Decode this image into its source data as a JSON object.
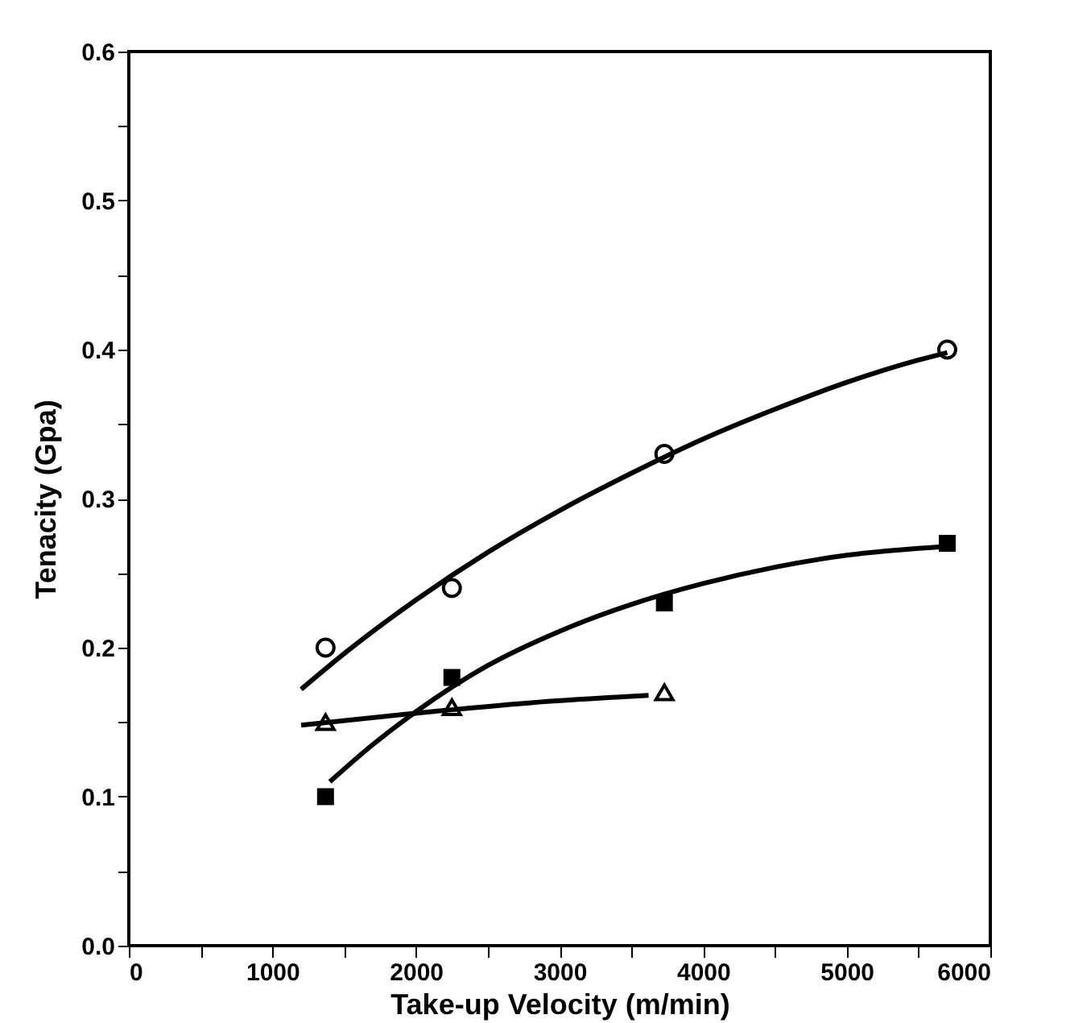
{
  "chart_data": {
    "type": "scatter",
    "xlabel": "Take-up Velocity (m/min)",
    "ylabel": "Tenacity (Gpa)",
    "xlim": [
      0,
      6000
    ],
    "ylim": [
      0,
      0.6
    ],
    "xticks": [
      0,
      {
        "value": 500,
        "label": null
      },
      1000,
      {
        "value": 1500,
        "label": null
      },
      2000,
      {
        "value": 2500,
        "label": null
      },
      3000,
      {
        "value": 3500,
        "label": null
      },
      4000,
      {
        "value": 4500,
        "label": null
      },
      5000,
      {
        "value": 5500,
        "label": null
      },
      6000
    ],
    "yticks": [
      {
        "value": 0,
        "label": "0.0"
      },
      {
        "value": 0.05,
        "label": null
      },
      0.1,
      {
        "value": 0.15,
        "label": null
      },
      0.2,
      {
        "value": 0.25,
        "label": null
      },
      0.3,
      {
        "value": 0.35,
        "label": null
      },
      0.4,
      {
        "value": 0.45,
        "label": null
      },
      0.5,
      {
        "value": 0.55,
        "label": null
      },
      0.6
    ],
    "grid": false,
    "series": [
      {
        "marker": "circle",
        "color": "#000000",
        "x": [
          1370,
          2250,
          3730,
          5700
        ],
        "values": [
          0.2,
          0.24,
          0.33,
          0.4
        ]
      },
      {
        "marker": "square",
        "color": "#000000",
        "x": [
          1370,
          2250,
          3730,
          5700
        ],
        "values": [
          0.1,
          0.18,
          0.23,
          0.27
        ]
      },
      {
        "marker": "triangle",
        "color": "#000000",
        "x": [
          1370,
          2250,
          3730
        ],
        "values": [
          0.15,
          0.16,
          0.17
        ]
      },
      {
        "type": "line",
        "line_style": "solid",
        "color": "#000000",
        "x": [
          1200,
          1500,
          2000,
          2500,
          3000,
          3500,
          4000,
          4500,
          5000,
          5500,
          5700
        ],
        "values": [
          0.172,
          0.196,
          0.232,
          0.264,
          0.292,
          0.317,
          0.34,
          0.36,
          0.378,
          0.393,
          0.398
        ]
      },
      {
        "type": "line",
        "line_style": "solid",
        "color": "#000000",
        "x": [
          1400,
          1700,
          2000,
          2500,
          3000,
          3500,
          4000,
          4500,
          5000,
          5700
        ],
        "values": [
          0.11,
          0.135,
          0.157,
          0.188,
          0.211,
          0.229,
          0.243,
          0.254,
          0.262,
          0.268
        ]
      },
      {
        "type": "line",
        "line_style": "solid",
        "color": "#000000",
        "x": [
          1200,
          2000,
          2800,
          3620
        ],
        "values": [
          0.148,
          0.156,
          0.163,
          0.168
        ]
      }
    ]
  }
}
